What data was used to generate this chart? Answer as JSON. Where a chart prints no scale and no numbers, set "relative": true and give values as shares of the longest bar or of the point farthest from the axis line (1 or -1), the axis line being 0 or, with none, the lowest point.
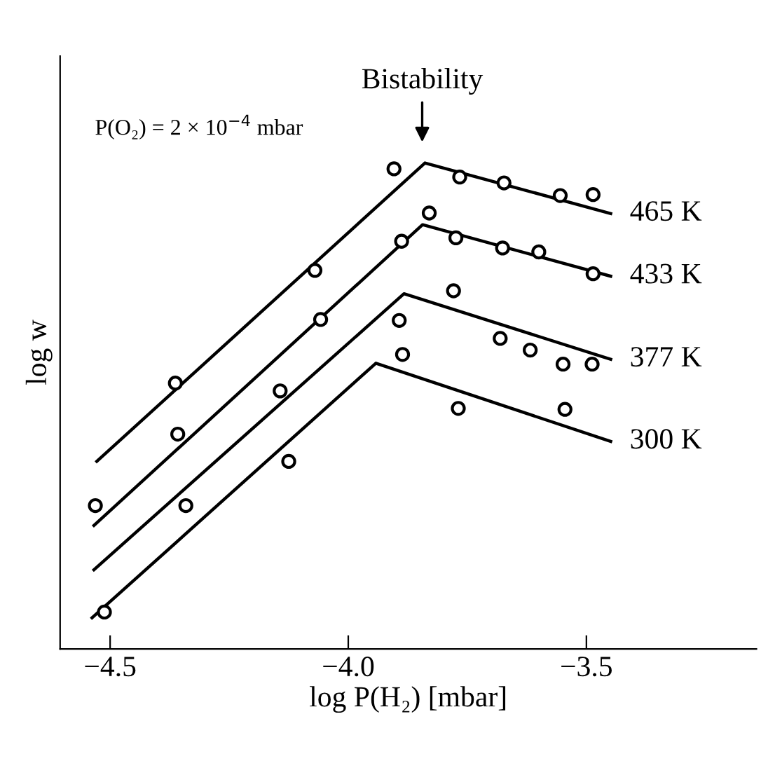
{
  "chart_data": {
    "type": "line",
    "relative": true,
    "xlabel": "log P(H₂) [mbar]",
    "ylabel": "log w",
    "xlim": [
      -4.605,
      -3.143
    ],
    "xticks": [
      {
        "value": -4.5,
        "label": "−4.5"
      },
      {
        "value": -4.0,
        "label": "−4.0"
      },
      {
        "value": -3.5,
        "label": "−3.5"
      }
    ],
    "tick_labels": "x",
    "grid": false,
    "legend": false,
    "annotations": [
      "Bistability",
      "P(O₂) = 2 × 10$^{−4}$ mbar"
    ],
    "series": [
      {
        "name": "465 K",
        "color": "#000000",
        "marker": "none",
        "x": [
          -4.528,
          -3.839,
          -3.449
        ],
        "values": [
          0.386,
          1.0,
          0.896
        ]
      },
      {
        "name": "433 K",
        "color": "#000000",
        "marker": "none",
        "x": [
          -4.534,
          -3.844,
          -3.449
        ],
        "values": [
          0.254,
          0.873,
          0.767
        ]
      },
      {
        "name": "377 K",
        "color": "#000000",
        "marker": "none",
        "x": [
          -4.534,
          -3.883,
          -3.449
        ],
        "values": [
          0.163,
          0.731,
          0.596
        ]
      },
      {
        "name": "300 K",
        "color": "#000000",
        "marker": "none",
        "x": [
          -4.538,
          -3.942,
          -3.449
        ],
        "values": [
          0.064,
          0.588,
          0.427
        ]
      },
      {
        "type": "scatter",
        "color": "#000000",
        "marker": "circle",
        "x": [
          -4.363,
          -4.07,
          -3.904,
          -3.766,
          -3.673,
          -3.555,
          -3.486
        ],
        "values": [
          0.547,
          0.779,
          0.988,
          0.971,
          0.959,
          0.933,
          0.935
        ]
      },
      {
        "type": "scatter",
        "color": "#000000",
        "marker": "circle",
        "x": [
          -4.531,
          -4.358,
          -4.058,
          -3.888,
          -3.83,
          -3.774,
          -3.676,
          -3.6,
          -3.486
        ],
        "values": [
          0.295,
          0.442,
          0.678,
          0.839,
          0.897,
          0.846,
          0.825,
          0.817,
          0.772
        ]
      },
      {
        "type": "scatter",
        "color": "#000000",
        "marker": "circle",
        "x": [
          -4.341,
          -4.143,
          -3.893,
          -3.779,
          -3.681,
          -3.618,
          -3.549,
          -3.488
        ],
        "values": [
          0.295,
          0.531,
          0.676,
          0.737,
          0.639,
          0.615,
          0.586,
          0.586
        ]
      },
      {
        "type": "scatter",
        "color": "#000000",
        "marker": "circle",
        "x": [
          -4.512,
          -4.125,
          -3.886,
          -3.769,
          -3.545
        ],
        "values": [
          0.076,
          0.386,
          0.606,
          0.495,
          0.493
        ]
      }
    ]
  }
}
